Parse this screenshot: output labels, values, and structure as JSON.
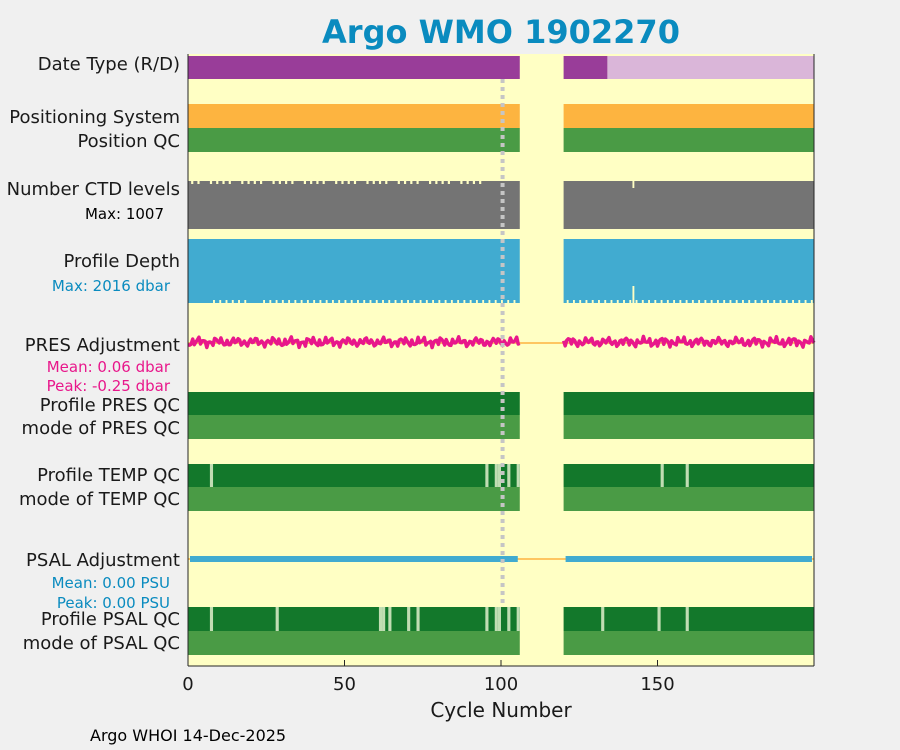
{
  "chart_data": {
    "type": "table",
    "title": "Argo WMO 1902270",
    "xlabel": "Cycle Number",
    "xlim": [
      0,
      200
    ],
    "xticks": [
      0,
      50,
      100,
      150
    ],
    "footer": "Argo WHOI 14-Dec-2025",
    "reference_cycle": 100,
    "gap": {
      "from": 106,
      "to": 120
    },
    "colors": {
      "plot_bg": "#ffffc4",
      "figure_bg": "#f0f0f0",
      "title": "#0a8bbf",
      "dark_green": "#13782b",
      "green": "#4a9b45",
      "light_green": "#c1ddb3",
      "purple": "#993d99",
      "light_purple": "#dab6d9",
      "orange": "#fdb440",
      "gray": "#747474",
      "blue": "#41abd0",
      "magenta": "#e8178b",
      "dotted_line": "#c5c5c5"
    },
    "rows": {
      "date_type": {
        "label": "Date Type (R/D)",
        "segments": [
          {
            "from": 0,
            "to": 106,
            "state": "R",
            "color": "#993d99"
          },
          {
            "from": 120,
            "to": 134,
            "state": "R",
            "color": "#993d99"
          },
          {
            "from": 134,
            "to": 200,
            "state": "D",
            "color": "#dab6d9"
          }
        ]
      },
      "positioning_system": {
        "label": "Positioning System",
        "segments": [
          {
            "from": 0,
            "to": 106
          },
          {
            "from": 120,
            "to": 200
          }
        ]
      },
      "position_qc": {
        "label": "Position QC",
        "segments": [
          {
            "from": 0,
            "to": 106
          },
          {
            "from": 120,
            "to": 200
          }
        ]
      },
      "ctd_levels": {
        "label": "Number CTD levels",
        "note": "Max: 1007",
        "max": 1007,
        "segments": [
          {
            "from": 0,
            "to": 106
          },
          {
            "from": 120,
            "to": 200
          }
        ],
        "dips": [
          142
        ]
      },
      "profile_depth": {
        "label": "Profile Depth",
        "note": "Max: 2016 dbar",
        "max": 2016,
        "segments": [
          {
            "from": 0,
            "to": 106
          },
          {
            "from": 120,
            "to": 200
          }
        ],
        "dips": [
          142
        ]
      },
      "pres_adjustment": {
        "label": "PRES Adjustment",
        "mean_text": "Mean: 0.06 dbar",
        "peak_text": "Peak: -0.25 dbar",
        "mean": 0.06,
        "peak": -0.25,
        "segments": [
          {
            "from": 0,
            "to": 106
          },
          {
            "from": 120,
            "to": 200
          }
        ]
      },
      "profile_pres_qc": {
        "label": "Profile PRES QC",
        "segments": [
          {
            "from": 0,
            "to": 106
          },
          {
            "from": 120,
            "to": 200
          }
        ]
      },
      "mode_pres_qc": {
        "label": "mode of PRES QC",
        "segments": [
          {
            "from": 0,
            "to": 106
          },
          {
            "from": 120,
            "to": 200
          }
        ]
      },
      "profile_temp_qc": {
        "label": "Profile TEMP QC",
        "segments": [
          {
            "from": 0,
            "to": 106
          },
          {
            "from": 120,
            "to": 200
          }
        ],
        "light_cycles": [
          7,
          95,
          98,
          99,
          102,
          105,
          151,
          159
        ]
      },
      "mode_temp_qc": {
        "label": "mode of TEMP QC",
        "segments": [
          {
            "from": 0,
            "to": 106
          },
          {
            "from": 120,
            "to": 200
          }
        ]
      },
      "psal_adjustment": {
        "label": "PSAL Adjustment",
        "mean_text": "Mean: 0.00 PSU",
        "peak_text": "Peak: 0.00 PSU",
        "mean": 0.0,
        "peak": 0.0,
        "segments": [
          {
            "from": 0,
            "to": 106
          },
          {
            "from": 120,
            "to": 200
          }
        ]
      },
      "profile_psal_qc": {
        "label": "Profile PSAL QC",
        "segments": [
          {
            "from": 0,
            "to": 106
          },
          {
            "from": 120,
            "to": 200
          }
        ],
        "light_cycles": [
          7,
          28,
          61,
          62,
          64,
          70,
          73,
          95,
          98,
          99,
          102,
          105,
          132,
          150,
          159
        ]
      },
      "mode_psal_qc": {
        "label": "mode of PSAL QC",
        "segments": [
          {
            "from": 0,
            "to": 106
          },
          {
            "from": 120,
            "to": 200
          }
        ]
      }
    }
  }
}
